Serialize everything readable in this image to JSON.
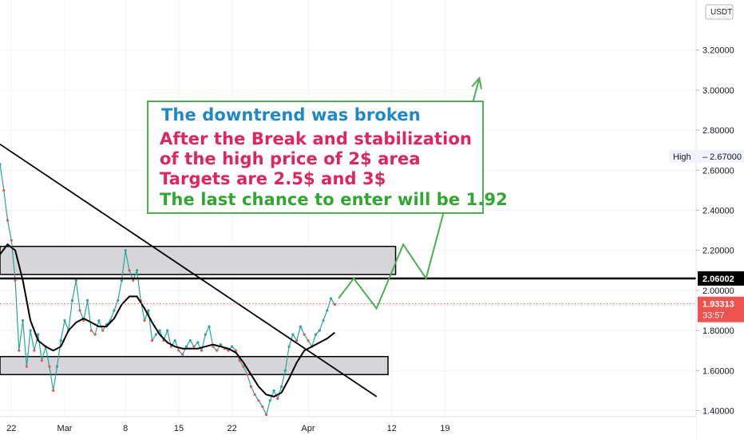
{
  "chart_data": {
    "type": "line",
    "currency": "USDT",
    "y_ticks": [
      "3.20000",
      "3.00000",
      "2.80000",
      "2.60000",
      "2.40000",
      "2.20000",
      "2.00000",
      "1.80000",
      "1.60000",
      "1.40000"
    ],
    "y_tick_values": [
      3.2,
      3.0,
      2.8,
      2.6,
      2.4,
      2.2,
      2.0,
      1.8,
      1.6,
      1.4
    ],
    "ylim": [
      1.37,
      3.45
    ],
    "x_ticks": [
      "22",
      "Mar",
      "8",
      "15",
      "22",
      "Apr",
      "12",
      "19"
    ],
    "x_tick_days": [
      -8,
      -1,
      7,
      14,
      21,
      31,
      42,
      49
    ],
    "xlim": [
      -9.5,
      82
    ],
    "price_series": [
      {
        "x": -9.5,
        "y": 2.63
      },
      {
        "x": -9,
        "y": 2.5
      },
      {
        "x": -8.5,
        "y": 2.35
      },
      {
        "x": -8,
        "y": 2.25
      },
      {
        "x": -7.5,
        "y": 2.05
      },
      {
        "x": -7,
        "y": 1.7
      },
      {
        "x": -6.5,
        "y": 1.85
      },
      {
        "x": -6,
        "y": 1.62
      },
      {
        "x": -5.5,
        "y": 1.8
      },
      {
        "x": -5,
        "y": 1.7
      },
      {
        "x": -4.5,
        "y": 1.78
      },
      {
        "x": -4,
        "y": 1.65
      },
      {
        "x": -3.5,
        "y": 1.72
      },
      {
        "x": -3,
        "y": 1.62
      },
      {
        "x": -2.5,
        "y": 1.5
      },
      {
        "x": -2,
        "y": 1.62
      },
      {
        "x": -1.5,
        "y": 1.75
      },
      {
        "x": -1,
        "y": 1.85
      },
      {
        "x": -0.5,
        "y": 1.8
      },
      {
        "x": 0,
        "y": 1.95
      },
      {
        "x": 0.5,
        "y": 2.05
      },
      {
        "x": 1,
        "y": 1.9
      },
      {
        "x": 1.5,
        "y": 1.85
      },
      {
        "x": 2,
        "y": 1.95
      },
      {
        "x": 2.5,
        "y": 1.8
      },
      {
        "x": 3,
        "y": 1.78
      },
      {
        "x": 3.5,
        "y": 1.85
      },
      {
        "x": 4,
        "y": 1.8
      },
      {
        "x": 4.5,
        "y": 1.83
      },
      {
        "x": 5,
        "y": 1.85
      },
      {
        "x": 5.5,
        "y": 1.9
      },
      {
        "x": 6,
        "y": 1.95
      },
      {
        "x": 6.5,
        "y": 2.05
      },
      {
        "x": 7,
        "y": 2.2
      },
      {
        "x": 7.5,
        "y": 2.1
      },
      {
        "x": 8,
        "y": 2.05
      },
      {
        "x": 8.5,
        "y": 2.1
      },
      {
        "x": 9,
        "y": 1.95
      },
      {
        "x": 9.5,
        "y": 1.85
      },
      {
        "x": 10,
        "y": 1.9
      },
      {
        "x": 10.5,
        "y": 1.75
      },
      {
        "x": 11,
        "y": 1.78
      },
      {
        "x": 11.5,
        "y": 1.8
      },
      {
        "x": 12,
        "y": 1.75
      },
      {
        "x": 12.5,
        "y": 1.8
      },
      {
        "x": 13,
        "y": 1.72
      },
      {
        "x": 13.5,
        "y": 1.75
      },
      {
        "x": 14,
        "y": 1.7
      },
      {
        "x": 14.5,
        "y": 1.68
      },
      {
        "x": 15,
        "y": 1.72
      },
      {
        "x": 15.5,
        "y": 1.75
      },
      {
        "x": 16,
        "y": 1.72
      },
      {
        "x": 16.5,
        "y": 1.74
      },
      {
        "x": 17,
        "y": 1.7
      },
      {
        "x": 17.5,
        "y": 1.78
      },
      {
        "x": 18,
        "y": 1.82
      },
      {
        "x": 18.5,
        "y": 1.72
      },
      {
        "x": 19,
        "y": 1.7
      },
      {
        "x": 19.5,
        "y": 1.73
      },
      {
        "x": 20,
        "y": 1.71
      },
      {
        "x": 20.5,
        "y": 1.7
      },
      {
        "x": 21,
        "y": 1.72
      },
      {
        "x": 21.5,
        "y": 1.7
      },
      {
        "x": 22,
        "y": 1.65
      },
      {
        "x": 22.5,
        "y": 1.62
      },
      {
        "x": 23,
        "y": 1.58
      },
      {
        "x": 23.5,
        "y": 1.52
      },
      {
        "x": 24,
        "y": 1.48
      },
      {
        "x": 24.5,
        "y": 1.45
      },
      {
        "x": 25,
        "y": 1.42
      },
      {
        "x": 25.5,
        "y": 1.38
      },
      {
        "x": 26,
        "y": 1.45
      },
      {
        "x": 26.5,
        "y": 1.5
      },
      {
        "x": 27,
        "y": 1.46
      },
      {
        "x": 27.5,
        "y": 1.52
      },
      {
        "x": 28,
        "y": 1.6
      },
      {
        "x": 28.5,
        "y": 1.72
      },
      {
        "x": 29,
        "y": 1.78
      },
      {
        "x": 29.5,
        "y": 1.75
      },
      {
        "x": 30,
        "y": 1.82
      },
      {
        "x": 30.5,
        "y": 1.78
      },
      {
        "x": 31,
        "y": 1.75
      },
      {
        "x": 31.5,
        "y": 1.72
      },
      {
        "x": 32,
        "y": 1.78
      },
      {
        "x": 32.5,
        "y": 1.8
      },
      {
        "x": 33,
        "y": 1.85
      },
      {
        "x": 33.5,
        "y": 1.9
      },
      {
        "x": 34,
        "y": 1.96
      },
      {
        "x": 34.5,
        "y": 1.93
      }
    ],
    "moving_average": [
      {
        "x": -9.5,
        "y": 2.18
      },
      {
        "x": -8.5,
        "y": 2.23
      },
      {
        "x": -7.5,
        "y": 2.2
      },
      {
        "x": -6.5,
        "y": 2.05
      },
      {
        "x": -5.5,
        "y": 1.85
      },
      {
        "x": -4.5,
        "y": 1.75
      },
      {
        "x": -3.5,
        "y": 1.72
      },
      {
        "x": -2.5,
        "y": 1.7
      },
      {
        "x": -1.5,
        "y": 1.72
      },
      {
        "x": -0.5,
        "y": 1.8
      },
      {
        "x": 0.5,
        "y": 1.84
      },
      {
        "x": 1.5,
        "y": 1.86
      },
      {
        "x": 2.5,
        "y": 1.84
      },
      {
        "x": 3.5,
        "y": 1.82
      },
      {
        "x": 4.5,
        "y": 1.82
      },
      {
        "x": 5.5,
        "y": 1.86
      },
      {
        "x": 6.5,
        "y": 1.93
      },
      {
        "x": 7.5,
        "y": 1.97
      },
      {
        "x": 8.5,
        "y": 1.97
      },
      {
        "x": 9.5,
        "y": 1.91
      },
      {
        "x": 10.5,
        "y": 1.84
      },
      {
        "x": 11.5,
        "y": 1.78
      },
      {
        "x": 12.5,
        "y": 1.74
      },
      {
        "x": 13.5,
        "y": 1.72
      },
      {
        "x": 14.5,
        "y": 1.71
      },
      {
        "x": 15.5,
        "y": 1.71
      },
      {
        "x": 16.5,
        "y": 1.71
      },
      {
        "x": 17.5,
        "y": 1.72
      },
      {
        "x": 18.5,
        "y": 1.73
      },
      {
        "x": 19.5,
        "y": 1.72
      },
      {
        "x": 20.5,
        "y": 1.71
      },
      {
        "x": 21.5,
        "y": 1.69
      },
      {
        "x": 22.5,
        "y": 1.64
      },
      {
        "x": 23.5,
        "y": 1.58
      },
      {
        "x": 24.5,
        "y": 1.52
      },
      {
        "x": 25.5,
        "y": 1.48
      },
      {
        "x": 26.5,
        "y": 1.47
      },
      {
        "x": 27.5,
        "y": 1.49
      },
      {
        "x": 28.5,
        "y": 1.56
      },
      {
        "x": 29.5,
        "y": 1.64
      },
      {
        "x": 30.5,
        "y": 1.7
      },
      {
        "x": 31.5,
        "y": 1.72
      },
      {
        "x": 32.5,
        "y": 1.74
      },
      {
        "x": 33.5,
        "y": 1.76
      },
      {
        "x": 34.5,
        "y": 1.79
      }
    ],
    "trendline": {
      "x1": -9.5,
      "y1": 2.73,
      "x2": 40,
      "y2": 1.47
    },
    "resistance_zone": {
      "x1": -9.5,
      "x2": 42.5,
      "y1": 2.08,
      "y2": 2.22
    },
    "support_zone": {
      "x1": -9.5,
      "x2": 41.5,
      "y1": 1.58,
      "y2": 1.67
    },
    "horizontal_level": {
      "y": 2.06002,
      "label": "2.06002"
    },
    "current_price": {
      "y": 1.93313,
      "label": "1.93313",
      "countdown": "33:57"
    },
    "high_marker": {
      "y": 2.67,
      "label": "High",
      "value": "2.67000"
    },
    "projection": [
      {
        "x": 35,
        "y": 1.96
      },
      {
        "x": 37,
        "y": 2.06
      },
      {
        "x": 40,
        "y": 1.91
      },
      {
        "x": 43.5,
        "y": 2.23
      },
      {
        "x": 46.5,
        "y": 2.06
      },
      {
        "x": 53.5,
        "y": 3.06
      }
    ],
    "annotation": [
      {
        "text": "The downtrend was broken",
        "color": "#1e88c8"
      },
      {
        "text": "After the Break and stabilization",
        "color": "#e0245e"
      },
      {
        "text": "of the high price of 2$ area",
        "color": "#e0245e"
      },
      {
        "text": "Targets are 2.5$  and 3$",
        "color": "#e0245e"
      },
      {
        "text": "The last chance to enter will be 1.92",
        "color": "#2ea82e"
      }
    ],
    "colors": {
      "trend": "#000000",
      "projection": "#4caf50",
      "zone_fill": "#d5d5da",
      "box_border": "#4caf50",
      "price_up": "#26a69a",
      "price_down": "#ef5350",
      "current_price_bg": "#ef5350",
      "level_bg": "#000000",
      "axis_text": "#131722",
      "grid": "#f0f3fa"
    }
  }
}
